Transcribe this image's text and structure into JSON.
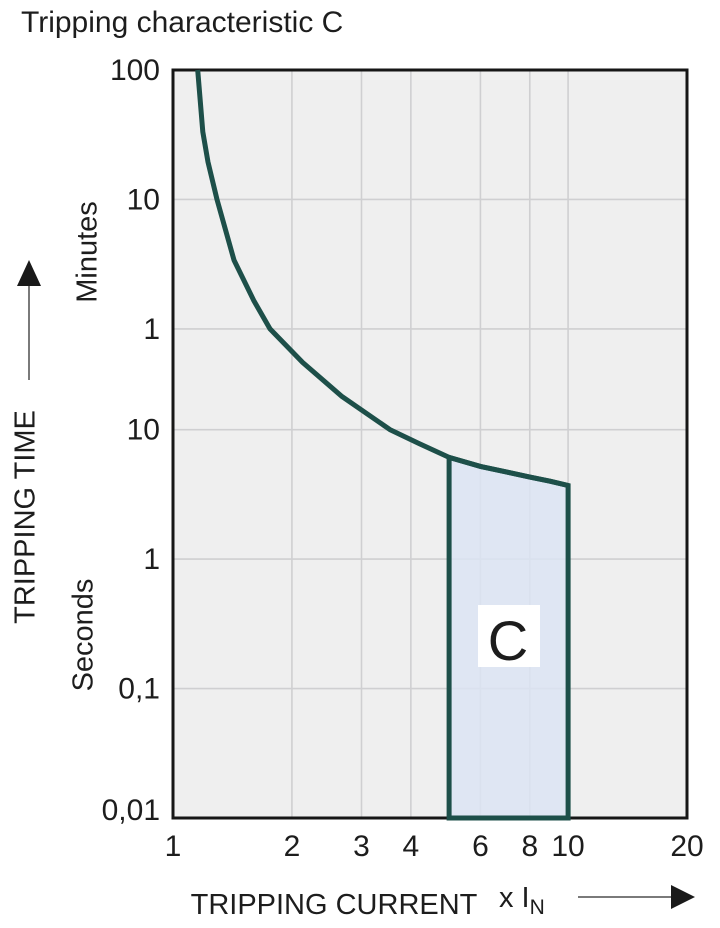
{
  "title": "Tripping characteristic C",
  "y_axis": {
    "title": "TRIPPING TIME",
    "unit_top": "Minutes",
    "unit_bottom": "Seconds"
  },
  "x_axis": {
    "title": "TRIPPING CURRENT",
    "multiplier": "x I",
    "multiplier_sub": "N"
  },
  "colors": {
    "curve": "#1d4f49",
    "region_fill": "#dce4f3",
    "plot_bg": "#efefef",
    "grid": "#cfcfd1",
    "border": "#161616",
    "text": "#1d1d1d",
    "label_box": "#ffffff"
  },
  "chart_data": {
    "type": "line",
    "title": "Tripping characteristic C",
    "xlabel": "TRIPPING CURRENT (x IN)",
    "ylabel": "TRIPPING TIME",
    "x_scale": "log",
    "y_scale": "log",
    "xlim": [
      1,
      20
    ],
    "ylim_seconds": [
      0.01,
      6000
    ],
    "grid": true,
    "x_gridlines": [
      2,
      3,
      4,
      6,
      8,
      10
    ],
    "y_gridlines_seconds": [
      600,
      60,
      10,
      1,
      0.1
    ],
    "x_ticks": [
      {
        "label": "1",
        "v": 1
      },
      {
        "label": "2",
        "v": 2
      },
      {
        "label": "3",
        "v": 3
      },
      {
        "label": "4",
        "v": 4
      },
      {
        "label": "6",
        "v": 6
      },
      {
        "label": "8",
        "v": 8
      },
      {
        "label": "10",
        "v": 10
      },
      {
        "label": "20",
        "v": 20
      }
    ],
    "y_ticks": [
      {
        "label": "100",
        "seconds": 6000,
        "unit": "minutes"
      },
      {
        "label": "10",
        "seconds": 600,
        "unit": "minutes"
      },
      {
        "label": "1",
        "seconds": 60,
        "unit": "minutes"
      },
      {
        "label": "10",
        "seconds": 10,
        "unit": "seconds"
      },
      {
        "label": "1",
        "seconds": 1,
        "unit": "seconds"
      },
      {
        "label": "0,1",
        "seconds": 0.1,
        "unit": "seconds"
      },
      {
        "label": "0,01",
        "seconds": 0.01,
        "unit": "seconds"
      }
    ],
    "series": [
      {
        "name": "C tripping curve",
        "points_x_in_y_seconds": [
          [
            1.155,
            6000
          ],
          [
            1.19,
            2000
          ],
          [
            1.226,
            1165
          ],
          [
            1.292,
            600
          ],
          [
            1.427,
            204
          ],
          [
            1.6,
            100
          ],
          [
            1.76,
            60
          ],
          [
            2.13,
            33
          ],
          [
            2.68,
            18
          ],
          [
            3.54,
            10
          ],
          [
            4.2,
            7.8
          ],
          [
            5.0,
            6.1
          ],
          [
            6.0,
            5.2
          ],
          [
            7.0,
            4.7
          ],
          [
            8.0,
            4.3
          ],
          [
            9.0,
            4.0
          ],
          [
            10.0,
            3.7
          ]
        ]
      }
    ],
    "region": {
      "label": "C",
      "x_range": [
        5,
        10
      ],
      "y_bottom_seconds": 0.01,
      "top_boundary": "curve"
    }
  }
}
